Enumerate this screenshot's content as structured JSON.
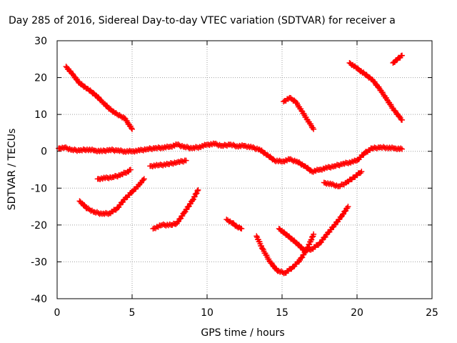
{
  "chart_data": {
    "type": "scatter",
    "title": "Day 285 of 2016, Sidereal Day-to-day VTEC variation (SDTVAR) for receiver a",
    "xlabel": "GPS time / hours",
    "ylabel": "SDTVAR / TECUs",
    "xlim": [
      0,
      25
    ],
    "ylim": [
      -40,
      30
    ],
    "xticks": [
      "0",
      "5",
      "10",
      "15",
      "20",
      "25"
    ],
    "yticks": [
      "-40",
      "-30",
      "-20",
      "-10",
      "0",
      "10",
      "20",
      "30"
    ],
    "grid": true,
    "marker": "plus",
    "color": "#ff0000",
    "series": [
      {
        "x": [
          0.1,
          0.5,
          1.0,
          1.5,
          2.0,
          2.5,
          3.0,
          3.5,
          4.0,
          4.5,
          5.0,
          5.5,
          6.0,
          6.5,
          7.0,
          7.5,
          8.0,
          8.5,
          9.0,
          9.5,
          10.0,
          10.5,
          11.0,
          11.5,
          12.0,
          12.5,
          13.0,
          13.5,
          14.0,
          14.5,
          15.0,
          15.5,
          16.0,
          16.5,
          17.0,
          17.5,
          18.0,
          18.5,
          19.0,
          19.5,
          20.0,
          20.5,
          21.0,
          21.5,
          22.0,
          22.5,
          23.0
        ],
        "y": [
          0.8,
          1.0,
          0.4,
          0.2,
          0.5,
          0.2,
          0.0,
          0.4,
          0.2,
          0.0,
          0.0,
          0.2,
          0.6,
          0.8,
          1.0,
          1.2,
          1.8,
          1.2,
          0.8,
          1.2,
          1.8,
          2.0,
          1.5,
          1.8,
          1.4,
          1.5,
          1.0,
          0.5,
          -1.0,
          -2.5,
          -2.8,
          -2.2,
          -2.8,
          -4.0,
          -5.5,
          -5.0,
          -4.5,
          -4.0,
          -3.5,
          -3.0,
          -2.5,
          -0.5,
          0.8,
          1.0,
          1.0,
          0.8,
          0.6
        ]
      },
      {
        "x": [
          0.6,
          1.0,
          1.5,
          2.0,
          2.5,
          3.0,
          3.5,
          4.0,
          4.5,
          5.0
        ],
        "y": [
          23.0,
          21.0,
          18.5,
          17.0,
          15.5,
          13.5,
          11.5,
          10.0,
          9.0,
          6.0
        ]
      },
      {
        "x": [
          1.5,
          2.0,
          2.5,
          3.0,
          3.5,
          4.0,
          4.5,
          5.0,
          5.5,
          5.8
        ],
        "y": [
          -13.5,
          -15.5,
          -16.5,
          -17.0,
          -16.8,
          -15.5,
          -13.0,
          -11.0,
          -9.0,
          -7.5
        ]
      },
      {
        "x": [
          2.7,
          3.2,
          3.7,
          4.2,
          4.7,
          4.9
        ],
        "y": [
          -7.5,
          -7.3,
          -7.0,
          -6.5,
          -5.5,
          -5.0
        ]
      },
      {
        "x": [
          6.2,
          6.8,
          7.4,
          8.0,
          8.6
        ],
        "y": [
          -4.0,
          -3.8,
          -3.5,
          -3.0,
          -2.5
        ]
      },
      {
        "x": [
          6.4,
          7.0,
          7.6,
          8.0,
          8.5,
          9.0,
          9.4
        ],
        "y": [
          -21.0,
          -20.0,
          -20.0,
          -19.5,
          -16.5,
          -13.5,
          -10.5
        ]
      },
      {
        "x": [
          11.3,
          11.7,
          12.0,
          12.3
        ],
        "y": [
          -18.5,
          -19.5,
          -20.5,
          -21.0
        ]
      },
      {
        "x": [
          13.3,
          13.7,
          14.2,
          14.7,
          15.2,
          15.7,
          16.2,
          16.6,
          16.9,
          17.1
        ],
        "y": [
          -23.0,
          -26.5,
          -30.0,
          -32.5,
          -33.0,
          -31.5,
          -29.5,
          -27.0,
          -24.5,
          -22.5
        ]
      },
      {
        "x": [
          14.8,
          15.4,
          16.0,
          16.5,
          17.0,
          17.5,
          18.0,
          18.5,
          19.0,
          19.4
        ],
        "y": [
          -21.0,
          -23.0,
          -25.0,
          -27.0,
          -26.5,
          -25.0,
          -22.5,
          -20.0,
          -17.5,
          -15.0
        ]
      },
      {
        "x": [
          15.1,
          15.5,
          15.9,
          16.3,
          16.7,
          17.1
        ],
        "y": [
          13.5,
          14.5,
          13.5,
          11.0,
          8.5,
          6.0
        ]
      },
      {
        "x": [
          17.8,
          18.3,
          18.8,
          19.3,
          19.8,
          20.3
        ],
        "y": [
          -8.5,
          -9.0,
          -9.5,
          -8.5,
          -7.0,
          -5.5
        ]
      },
      {
        "x": [
          19.5,
          20.0,
          20.5,
          21.0,
          21.5,
          22.0,
          22.5,
          23.0
        ],
        "y": [
          24.0,
          22.5,
          21.0,
          19.5,
          17.0,
          14.0,
          11.0,
          8.5
        ]
      },
      {
        "x": [
          22.4,
          22.7,
          23.0
        ],
        "y": [
          24.0,
          25.0,
          26.0
        ]
      }
    ]
  }
}
